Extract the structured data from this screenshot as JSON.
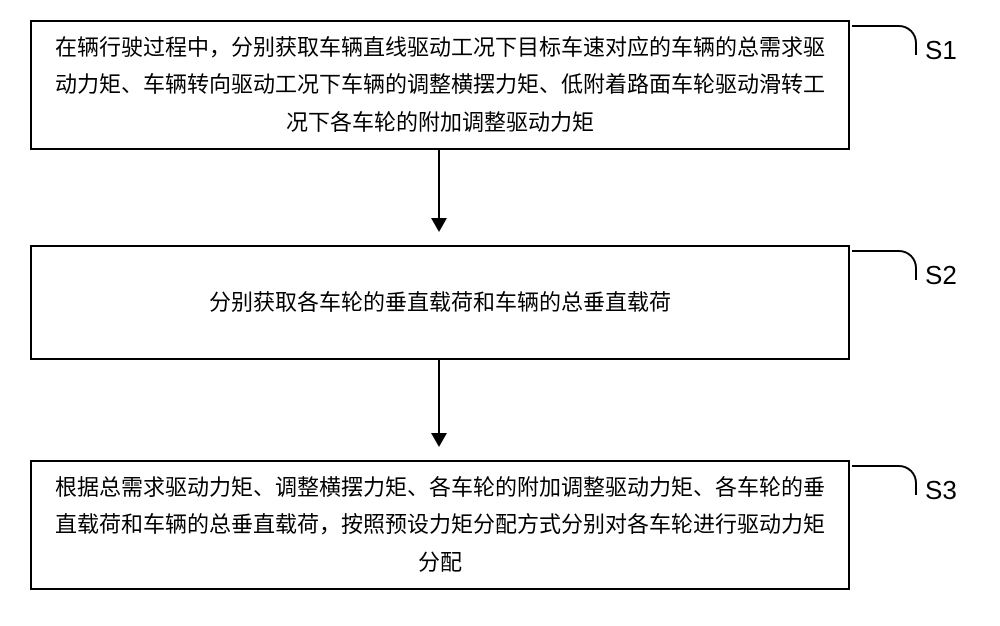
{
  "flowchart": {
    "type": "flowchart",
    "background_color": "#ffffff",
    "border_color": "#000000",
    "text_color": "#000000",
    "font_size": 22,
    "label_font_size": 26,
    "nodes": [
      {
        "id": "s1",
        "text": "在辆行驶过程中，分别获取车辆直线驱动工况下目标车速对应的车辆的总需求驱动力矩、车辆转向驱动工况下车辆的调整横摆力矩、低附着路面车轮驱动滑转工况下各车轮的附加调整驱动力矩",
        "label": "S1"
      },
      {
        "id": "s2",
        "text": "分别获取各车轮的垂直载荷和车辆的总垂直载荷",
        "label": "S2"
      },
      {
        "id": "s3",
        "text": "根据总需求驱动力矩、调整横摆力矩、各车轮的附加调整驱动力矩、各车轮的垂直载荷和车辆的总垂直载荷，按照预设力矩分配方式分别对各车轮进行驱动力矩分配",
        "label": "S3"
      }
    ],
    "edges": [
      {
        "from": "s1",
        "to": "s2"
      },
      {
        "from": "s2",
        "to": "s3"
      }
    ]
  }
}
